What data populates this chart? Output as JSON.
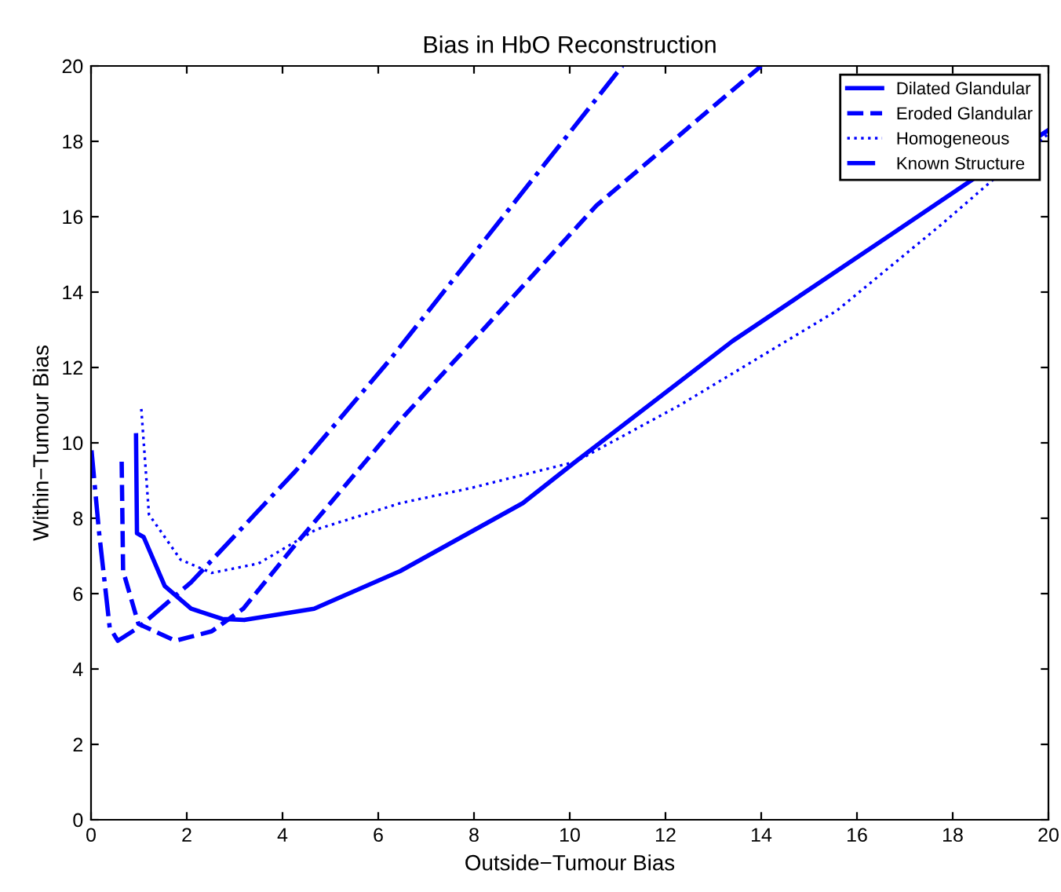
{
  "chart_data": {
    "type": "line",
    "title": "Bias in HbO Reconstruction",
    "xlabel": "Outside−Tumour Bias",
    "ylabel": "Within−Tumour Bias",
    "xlim": [
      0,
      20
    ],
    "ylim": [
      0,
      20
    ],
    "xticks": [
      0,
      2,
      4,
      6,
      8,
      10,
      12,
      14,
      16,
      18,
      20
    ],
    "yticks": [
      0,
      2,
      4,
      6,
      8,
      10,
      12,
      14,
      16,
      18,
      20
    ],
    "grid": false,
    "legend": "top right",
    "marker": "none",
    "series": [
      {
        "name": "Dilated Glandular",
        "color": "#0000ff",
        "line_style": "solid",
        "x": [
          0.94,
          0.96,
          1.1,
          1.54,
          2.09,
          2.74,
          3.2,
          4.66,
          6.46,
          9.02,
          10.12,
          13.4,
          16.68,
          18.43,
          20
        ],
        "values": [
          10.2,
          7.6,
          7.5,
          6.2,
          5.6,
          5.33,
          5.3,
          5.6,
          6.6,
          8.4,
          9.5,
          12.7,
          15.5,
          17.0,
          18.3
        ]
      },
      {
        "name": "Eroded Glandular",
        "color": "#0000ff",
        "line_style": "dashed",
        "x": [
          0.64,
          0.67,
          0.99,
          1.76,
          2.52,
          3.18,
          4.27,
          6.46,
          10.56,
          14.0
        ],
        "values": [
          9.5,
          6.6,
          5.2,
          4.75,
          5.0,
          5.6,
          7.3,
          10.6,
          16.3,
          20.0
        ]
      },
      {
        "name": "Homogeneous",
        "color": "#0000ff",
        "line_style": "dotted",
        "x": [
          1.05,
          1.21,
          1.87,
          2.52,
          3.5,
          4.7,
          6.46,
          7.93,
          10.12,
          12.3,
          15.57,
          17.77,
          18.86,
          20
        ],
        "values": [
          10.9,
          8.1,
          6.9,
          6.55,
          6.8,
          7.7,
          8.4,
          8.8,
          9.5,
          11.0,
          13.5,
          15.8,
          17.0,
          18.2
        ]
      },
      {
        "name": "Known Structure",
        "color": "#0000ff",
        "line_style": "dashdot",
        "x": [
          0.01,
          0.17,
          0.39,
          0.56,
          0.99,
          2.09,
          4.27,
          6.24,
          11.1
        ],
        "values": [
          9.8,
          7.6,
          5.1,
          4.75,
          5.1,
          6.3,
          9.25,
          12.2,
          20.0
        ]
      }
    ]
  }
}
